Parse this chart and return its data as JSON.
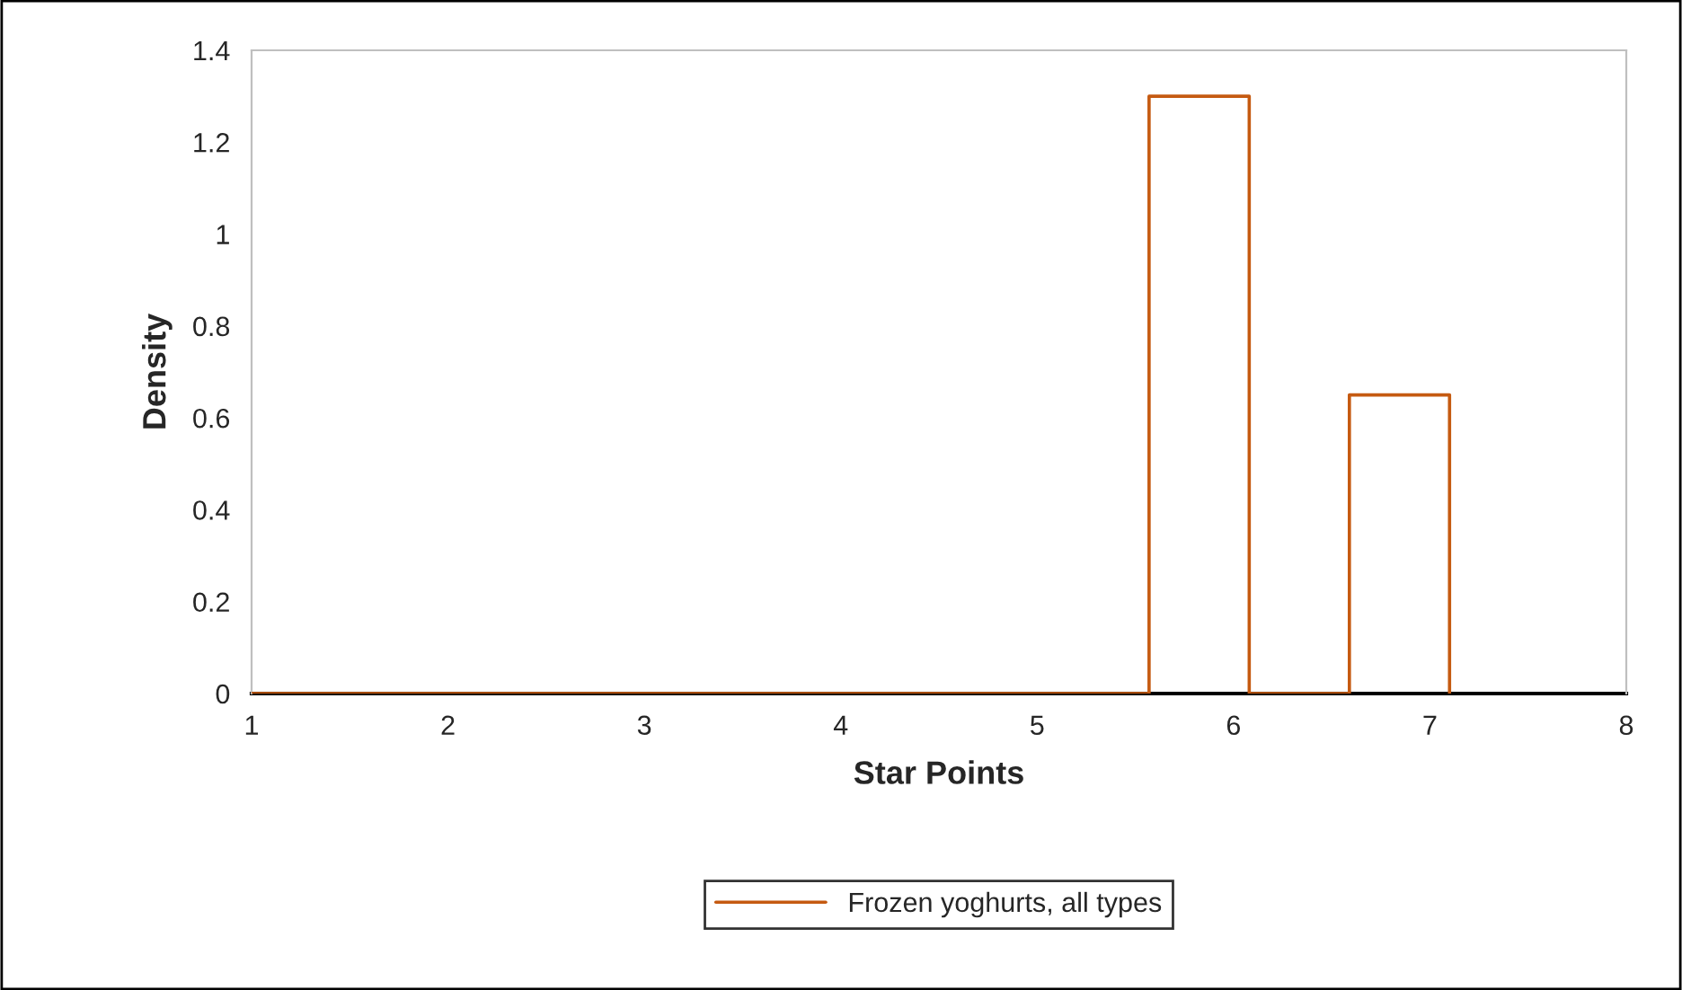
{
  "chart_data": {
    "type": "line",
    "xlabel": "Star Points",
    "ylabel": "Density",
    "x": [
      1,
      5.57,
      5.57,
      6.08,
      6.08,
      6.59,
      6.59,
      7.1,
      7.1
    ],
    "series": [
      {
        "name": "Frozen yoghurts, all types",
        "color": "#c55a11",
        "values": [
          0,
          0,
          1.3,
          1.3,
          0,
          0,
          0.65,
          0.65,
          0
        ]
      }
    ],
    "xlim": [
      1,
      8
    ],
    "xticks": [
      1,
      2,
      3,
      4,
      5,
      6,
      7,
      8
    ],
    "ylim": [
      0,
      1.4
    ],
    "yticks": [
      0,
      0.2,
      0.4,
      0.6,
      0.8,
      1,
      1.2,
      1.4
    ],
    "grid": false,
    "legend": "bottom",
    "marker": "none",
    "line_style": "solid"
  }
}
